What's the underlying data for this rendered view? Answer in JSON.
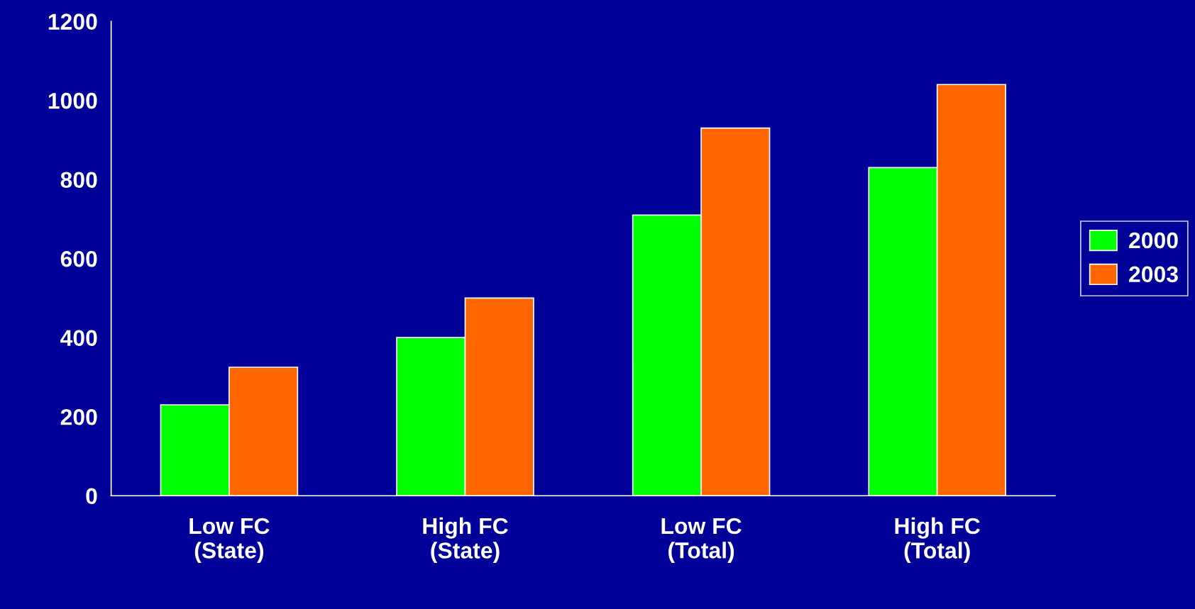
{
  "chart_data": {
    "type": "bar",
    "categories": [
      "Low FC\n(State)",
      "High FC\n(State)",
      "Low FC\n(Total)",
      "High FC\n(Total)"
    ],
    "series": [
      {
        "name": "2000",
        "color": "#00ff00",
        "values": [
          230,
          400,
          710,
          830
        ]
      },
      {
        "name": "2003",
        "color": "#ff6600",
        "values": [
          325,
          500,
          930,
          1040
        ]
      }
    ],
    "ylim": [
      0,
      1200
    ],
    "yticks": [
      0,
      200,
      400,
      600,
      800,
      1000,
      1200
    ],
    "grid": false,
    "legend": "right"
  }
}
